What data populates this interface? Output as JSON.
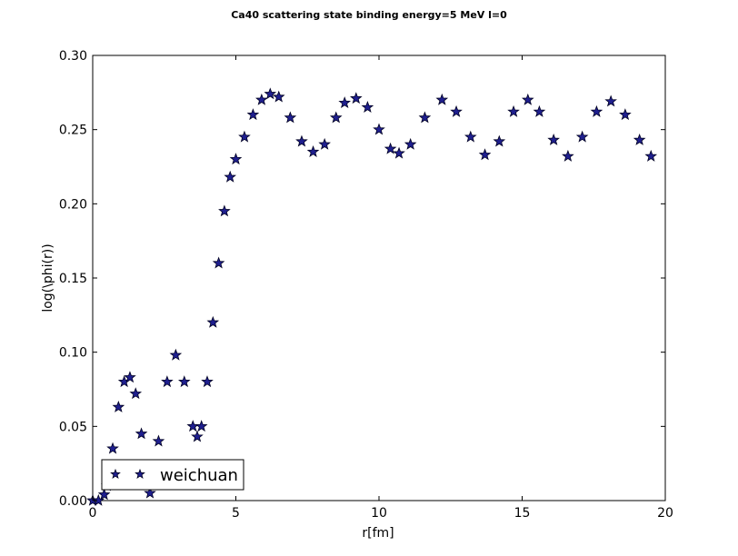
{
  "chart_data": {
    "type": "scatter",
    "title": "Ca40 scattering state binding energy=5 MeV l=0",
    "xlabel": "r[fm]",
    "ylabel": "log(\\phi(r))",
    "xlim": [
      0,
      20
    ],
    "ylim": [
      0,
      0.3
    ],
    "xticks": [
      0,
      5,
      10,
      15,
      20
    ],
    "xtick_labels": [
      "0",
      "5",
      "10",
      "15",
      "20"
    ],
    "yticks": [
      0,
      0.05,
      0.1,
      0.15,
      0.2,
      0.25,
      0.3
    ],
    "ytick_labels": [
      "0.00",
      "0.05",
      "0.10",
      "0.15",
      "0.20",
      "0.25",
      "0.30"
    ],
    "grid": false,
    "legend_position": "lower-left",
    "marker": "star",
    "colors": {
      "marker_fill": "#1f1f8f",
      "marker_edge": "#000022"
    },
    "series": [
      {
        "name": "weichuan",
        "x": [
          0,
          0.2,
          0.4,
          0.5,
          0.7,
          0.9,
          1.1,
          1.3,
          1.5,
          1.7,
          1.85,
          2.0,
          2.3,
          2.6,
          2.9,
          3.2,
          3.5,
          3.65,
          3.8,
          4.0,
          4.2,
          4.4,
          4.6,
          4.8,
          5.0,
          5.3,
          5.6,
          5.9,
          6.2,
          6.5,
          6.9,
          7.3,
          7.7,
          8.1,
          8.5,
          8.8,
          9.2,
          9.6,
          10.0,
          10.4,
          10.7,
          11.1,
          11.6,
          12.2,
          12.7,
          13.2,
          13.7,
          14.2,
          14.7,
          15.2,
          15.6,
          16.1,
          16.6,
          17.1,
          17.6,
          18.1,
          18.6,
          19.1,
          19.5
        ],
        "y": [
          0.0,
          0.0,
          0.004,
          0.01,
          0.035,
          0.063,
          0.08,
          0.083,
          0.072,
          0.045,
          0.018,
          0.005,
          0.04,
          0.08,
          0.098,
          0.08,
          0.05,
          0.043,
          0.05,
          0.08,
          0.12,
          0.16,
          0.195,
          0.218,
          0.23,
          0.245,
          0.26,
          0.27,
          0.274,
          0.272,
          0.258,
          0.242,
          0.235,
          0.24,
          0.258,
          0.268,
          0.271,
          0.265,
          0.25,
          0.237,
          0.234,
          0.24,
          0.258,
          0.27,
          0.262,
          0.245,
          0.233,
          0.242,
          0.262,
          0.27,
          0.262,
          0.243,
          0.232,
          0.245,
          0.262,
          0.269,
          0.26,
          0.243,
          0.232
        ]
      }
    ]
  }
}
